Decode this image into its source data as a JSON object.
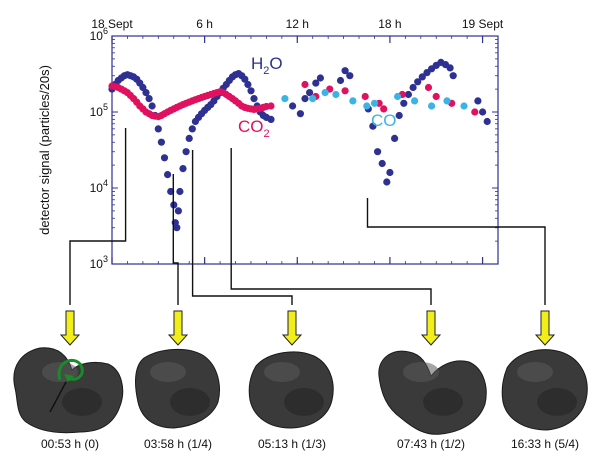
{
  "chart_data": {
    "type": "scatter",
    "y_scale": "log",
    "ylabel": "detector signal (particles/20s)",
    "ylim": [
      1000,
      1000000
    ],
    "xlim_hours": [
      0,
      25
    ],
    "grid": false,
    "x_top_ticks": [
      {
        "label": "18 Sept",
        "hour": 0
      },
      {
        "label": "6 h",
        "hour": 6
      },
      {
        "label": "12 h",
        "hour": 12
      },
      {
        "label": "18 h",
        "hour": 18
      },
      {
        "label": "19 Sept",
        "hour": 24
      }
    ],
    "y_ticks": [
      {
        "base": "10",
        "exp": "3",
        "value": 1000
      },
      {
        "base": "10",
        "exp": "4",
        "value": 10000
      },
      {
        "base": "10",
        "exp": "5",
        "value": 100000
      },
      {
        "base": "10",
        "exp": "6",
        "value": 1000000
      }
    ],
    "series": [
      {
        "name": "H2O",
        "label_main": "H",
        "label_sub": "2",
        "label_tail": "O",
        "color": "#2e3192",
        "points": [
          [
            0.0,
            200000
          ],
          [
            0.2,
            230000
          ],
          [
            0.4,
            260000
          ],
          [
            0.6,
            280000
          ],
          [
            0.8,
            300000
          ],
          [
            1.0,
            310000
          ],
          [
            1.2,
            300000
          ],
          [
            1.4,
            290000
          ],
          [
            1.6,
            270000
          ],
          [
            1.8,
            240000
          ],
          [
            2.0,
            210000
          ],
          [
            2.2,
            180000
          ],
          [
            2.4,
            150000
          ],
          [
            2.6,
            120000
          ],
          [
            2.8,
            90000
          ],
          [
            3.0,
            60000
          ],
          [
            3.2,
            40000
          ],
          [
            3.4,
            25000
          ],
          [
            3.6,
            15000
          ],
          [
            3.8,
            9000
          ],
          [
            4.0,
            6000
          ],
          [
            4.1,
            3500
          ],
          [
            4.2,
            3000
          ],
          [
            4.3,
            5000
          ],
          [
            4.4,
            9000
          ],
          [
            4.6,
            18000
          ],
          [
            4.8,
            30000
          ],
          [
            5.0,
            45000
          ],
          [
            5.2,
            60000
          ],
          [
            5.4,
            75000
          ],
          [
            5.6,
            85000
          ],
          [
            5.8,
            95000
          ],
          [
            6.0,
            105000
          ],
          [
            6.2,
            115000
          ],
          [
            6.4,
            125000
          ],
          [
            6.6,
            140000
          ],
          [
            6.8,
            160000
          ],
          [
            7.0,
            180000
          ],
          [
            7.2,
            205000
          ],
          [
            7.4,
            230000
          ],
          [
            7.6,
            260000
          ],
          [
            7.8,
            290000
          ],
          [
            8.0,
            310000
          ],
          [
            8.2,
            320000
          ],
          [
            8.4,
            300000
          ],
          [
            8.6,
            270000
          ],
          [
            8.8,
            230000
          ],
          [
            9.0,
            190000
          ],
          [
            9.2,
            150000
          ],
          [
            9.4,
            120000
          ],
          [
            9.6,
            100000
          ],
          [
            9.8,
            90000
          ],
          [
            10.0,
            85000
          ],
          [
            10.3,
            80000
          ],
          [
            11.7,
            120000
          ],
          [
            12.2,
            95000
          ],
          [
            12.5,
            150000
          ],
          [
            12.8,
            180000
          ],
          [
            13.2,
            240000
          ],
          [
            13.5,
            280000
          ],
          [
            14.8,
            260000
          ],
          [
            15.1,
            350000
          ],
          [
            15.4,
            300000
          ],
          [
            16.6,
            110000
          ],
          [
            16.9,
            65000
          ],
          [
            17.2,
            30000
          ],
          [
            17.5,
            21000
          ],
          [
            17.8,
            12000
          ],
          [
            18.0,
            16000
          ],
          [
            18.3,
            45000
          ],
          [
            18.6,
            90000
          ],
          [
            18.9,
            130000
          ],
          [
            19.2,
            170000
          ],
          [
            19.5,
            210000
          ],
          [
            19.8,
            250000
          ],
          [
            20.1,
            290000
          ],
          [
            20.4,
            330000
          ],
          [
            20.7,
            370000
          ],
          [
            21.0,
            410000
          ],
          [
            21.3,
            450000
          ],
          [
            21.6,
            420000
          ],
          [
            21.9,
            380000
          ],
          [
            22.1,
            300000
          ],
          [
            23.7,
            140000
          ],
          [
            24.0,
            100000
          ],
          [
            24.3,
            75000
          ]
        ]
      },
      {
        "name": "CO2",
        "label_main": "CO",
        "label_sub": "2",
        "label_tail": "",
        "color": "#e0115f",
        "points": [
          [
            0.0,
            220000
          ],
          [
            0.2,
            215000
          ],
          [
            0.4,
            210000
          ],
          [
            0.6,
            200000
          ],
          [
            0.8,
            190000
          ],
          [
            1.0,
            180000
          ],
          [
            1.2,
            165000
          ],
          [
            1.4,
            150000
          ],
          [
            1.6,
            135000
          ],
          [
            1.8,
            120000
          ],
          [
            2.0,
            110000
          ],
          [
            2.2,
            100000
          ],
          [
            2.4,
            95000
          ],
          [
            2.6,
            90000
          ],
          [
            2.8,
            88000
          ],
          [
            3.0,
            87000
          ],
          [
            3.2,
            90000
          ],
          [
            3.4,
            95000
          ],
          [
            3.6,
            100000
          ],
          [
            3.8,
            105000
          ],
          [
            4.0,
            110000
          ],
          [
            4.2,
            115000
          ],
          [
            4.4,
            120000
          ],
          [
            4.6,
            125000
          ],
          [
            4.8,
            130000
          ],
          [
            5.0,
            135000
          ],
          [
            5.2,
            140000
          ],
          [
            5.4,
            145000
          ],
          [
            5.6,
            150000
          ],
          [
            5.8,
            155000
          ],
          [
            6.0,
            160000
          ],
          [
            6.2,
            165000
          ],
          [
            6.4,
            170000
          ],
          [
            6.6,
            175000
          ],
          [
            6.8,
            180000
          ],
          [
            7.0,
            185000
          ],
          [
            7.2,
            180000
          ],
          [
            7.4,
            170000
          ],
          [
            7.6,
            160000
          ],
          [
            7.8,
            150000
          ],
          [
            8.0,
            140000
          ],
          [
            8.2,
            130000
          ],
          [
            8.4,
            120000
          ],
          [
            8.6,
            115000
          ],
          [
            8.8,
            112000
          ],
          [
            9.0,
            110000
          ],
          [
            9.2,
            108000
          ],
          [
            9.4,
            110000
          ],
          [
            9.6,
            112000
          ],
          [
            9.8,
            115000
          ],
          [
            10.0,
            118000
          ],
          [
            10.3,
            120000
          ],
          [
            12.5,
            230000
          ],
          [
            13.2,
            160000
          ],
          [
            14.1,
            200000
          ],
          [
            15.1,
            190000
          ],
          [
            16.4,
            160000
          ],
          [
            17.3,
            130000
          ],
          [
            17.6,
            110000
          ],
          [
            18.8,
            170000
          ],
          [
            20.5,
            210000
          ],
          [
            21.0,
            160000
          ],
          [
            22.0,
            130000
          ],
          [
            23.5,
            100000
          ]
        ]
      },
      {
        "name": "CO",
        "label_main": "CO",
        "label_sub": "",
        "label_tail": "",
        "color": "#3bb4e5",
        "points": [
          [
            11.2,
            150000
          ],
          [
            13.0,
            150000
          ],
          [
            13.8,
            180000
          ],
          [
            14.5,
            170000
          ],
          [
            15.6,
            140000
          ],
          [
            16.5,
            120000
          ],
          [
            17.0,
            130000
          ],
          [
            18.5,
            160000
          ],
          [
            19.6,
            140000
          ],
          [
            20.7,
            120000
          ],
          [
            21.7,
            140000
          ],
          [
            22.8,
            120000
          ]
        ]
      }
    ],
    "snapshots": [
      {
        "time": "00:53 h (0)",
        "hour": 0.88,
        "shape": "lobes-side",
        "rotation_arrow": true
      },
      {
        "time": "03:58 h (1/4)",
        "hour": 3.97,
        "shape": "round-a",
        "rotation_arrow": false
      },
      {
        "time": "05:13 h (1/3)",
        "hour": 5.22,
        "shape": "round-b",
        "rotation_arrow": false
      },
      {
        "time": "07:43 h (1/2)",
        "hour": 7.72,
        "shape": "lobes-front",
        "rotation_arrow": false
      },
      {
        "time": "16:33 h (5/4)",
        "hour": 16.55,
        "shape": "round-c",
        "rotation_arrow": false
      }
    ]
  }
}
